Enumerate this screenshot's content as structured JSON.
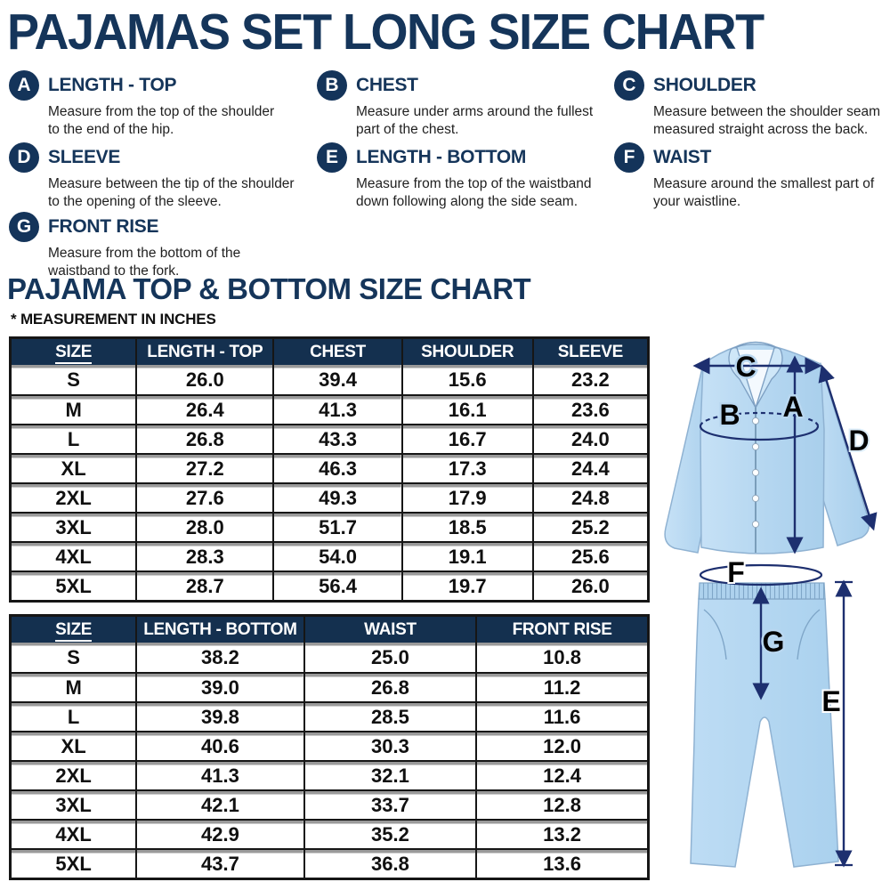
{
  "page": {
    "title": "PAJAMAS SET LONG SIZE CHART"
  },
  "definitions": [
    {
      "letter": "A",
      "name": "LENGTH - TOP",
      "desc_line1": "Measure from the top of the shoulder",
      "desc_line2": "to the end of the hip."
    },
    {
      "letter": "B",
      "name": "CHEST",
      "desc_line1": "Measure under arms around the fullest",
      "desc_line2": "part of the chest."
    },
    {
      "letter": "C",
      "name": "SHOULDER",
      "desc_line1": "Measure between the shoulder seam",
      "desc_line2": "measured straight across the back."
    },
    {
      "letter": "D",
      "name": "SLEEVE",
      "desc_line1": "Measure between the tip of the shoulder",
      "desc_line2": "to the opening of the sleeve."
    },
    {
      "letter": "E",
      "name": "LENGTH - BOTTOM",
      "desc_line1": "Measure from the top of the waistband",
      "desc_line2": "down following along the side seam."
    },
    {
      "letter": "F",
      "name": "WAIST",
      "desc_line1": "Measure around the smallest part of",
      "desc_line2": "your waistline."
    },
    {
      "letter": "G",
      "name": "FRONT RISE",
      "desc_line1": "Measure from the bottom of the",
      "desc_line2": "waistband to the fork."
    }
  ],
  "section": {
    "heading": "PAJAMA TOP & BOTTOM SIZE CHART",
    "note": "* MEASUREMENT IN INCHES"
  },
  "top_table": {
    "headers": [
      "SIZE",
      "LENGTH - TOP",
      "CHEST",
      "SHOULDER",
      "SLEEVE"
    ],
    "rows": [
      [
        "S",
        "26.0",
        "39.4",
        "15.6",
        "23.2"
      ],
      [
        "M",
        "26.4",
        "41.3",
        "16.1",
        "23.6"
      ],
      [
        "L",
        "26.8",
        "43.3",
        "16.7",
        "24.0"
      ],
      [
        "XL",
        "27.2",
        "46.3",
        "17.3",
        "24.4"
      ],
      [
        "2XL",
        "27.6",
        "49.3",
        "17.9",
        "24.8"
      ],
      [
        "3XL",
        "28.0",
        "51.7",
        "18.5",
        "25.2"
      ],
      [
        "4XL",
        "28.3",
        "54.0",
        "19.1",
        "25.6"
      ],
      [
        "5XL",
        "28.7",
        "56.4",
        "19.7",
        "26.0"
      ]
    ]
  },
  "bottom_table": {
    "headers": [
      "SIZE",
      "LENGTH - BOTTOM",
      "WAIST",
      "FRONT RISE"
    ],
    "rows": [
      [
        "S",
        "38.2",
        "25.0",
        "10.8"
      ],
      [
        "M",
        "39.0",
        "26.8",
        "11.2"
      ],
      [
        "L",
        "39.8",
        "28.5",
        "11.6"
      ],
      [
        "XL",
        "40.6",
        "30.3",
        "12.0"
      ],
      [
        "2XL",
        "41.3",
        "32.1",
        "12.4"
      ],
      [
        "3XL",
        "42.1",
        "33.7",
        "12.8"
      ],
      [
        "4XL",
        "42.9",
        "35.2",
        "13.2"
      ],
      [
        "5XL",
        "43.7",
        "36.8",
        "13.6"
      ]
    ]
  },
  "illustration": {
    "markers": {
      "a": "A",
      "b": "B",
      "c": "C",
      "d": "D",
      "e": "E",
      "f": "F",
      "g": "G"
    }
  },
  "colors": {
    "navy": "#15355a",
    "table_header": "#14304f",
    "arrow": "#1d2f6f",
    "shirt_blue": "#b9d7f0"
  }
}
